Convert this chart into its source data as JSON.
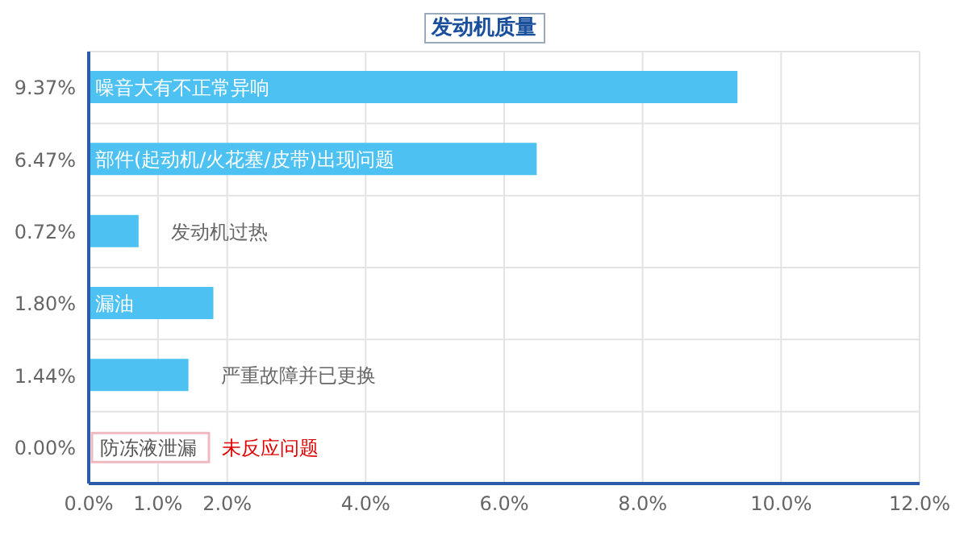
{
  "chart_data": {
    "type": "bar",
    "orientation": "horizontal",
    "title": "发动机质量",
    "categories": [
      "噪音大有不正常异响",
      "部件(起动机/火花塞/皮带)出现问题",
      "发动机过热",
      "漏油",
      "严重故障并已更换",
      "防冻液泄漏"
    ],
    "values": [
      9.37,
      6.47,
      0.72,
      1.8,
      1.44,
      0.0
    ],
    "value_labels": [
      "9.37%",
      "6.47%",
      "0.72%",
      "1.80%",
      "1.44%",
      "0.00%"
    ],
    "color": "#4dc1f2",
    "xlim": [
      0,
      12
    ],
    "xticks": [
      {
        "value": 0,
        "label": "0.0%"
      },
      {
        "value": 1,
        "label": "1.0%"
      },
      {
        "value": 2,
        "label": "2.0%"
      },
      {
        "value": 4,
        "label": "4.0%"
      },
      {
        "value": 6,
        "label": "6.0%"
      },
      {
        "value": 8,
        "label": "8.0%"
      },
      {
        "value": 10,
        "label": "10.0%"
      },
      {
        "value": 12,
        "label": "12.0%"
      }
    ],
    "annotations": [
      "未反应问题"
    ],
    "grid": true
  }
}
